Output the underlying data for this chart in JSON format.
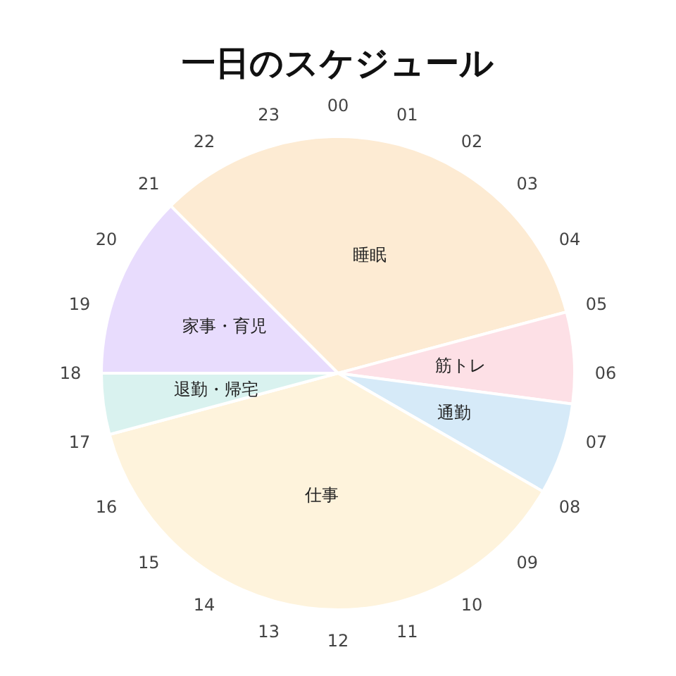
{
  "chart_data": {
    "type": "pie",
    "title": "一日のスケジュール",
    "categories": [
      "睡眠",
      "筋トレ",
      "通勤",
      "仕事",
      "退勤・帰宅",
      "家事・育児"
    ],
    "values": [
      33.33,
      6.25,
      6.25,
      37.5,
      4.17,
      12.5
    ],
    "colors": [
      "#fdebd3",
      "#fde0e6",
      "#d6eaf8",
      "#fef3dc",
      "#d9f2ef",
      "#e8dcfd"
    ],
    "annotations": [
      "00",
      "01",
      "02",
      "03",
      "04",
      "05",
      "06",
      "07",
      "08",
      "09",
      "10",
      "11",
      "12",
      "13",
      "14",
      "15",
      "16",
      "17",
      "18",
      "19",
      "20",
      "21",
      "22",
      "23"
    ],
    "legend": false
  }
}
